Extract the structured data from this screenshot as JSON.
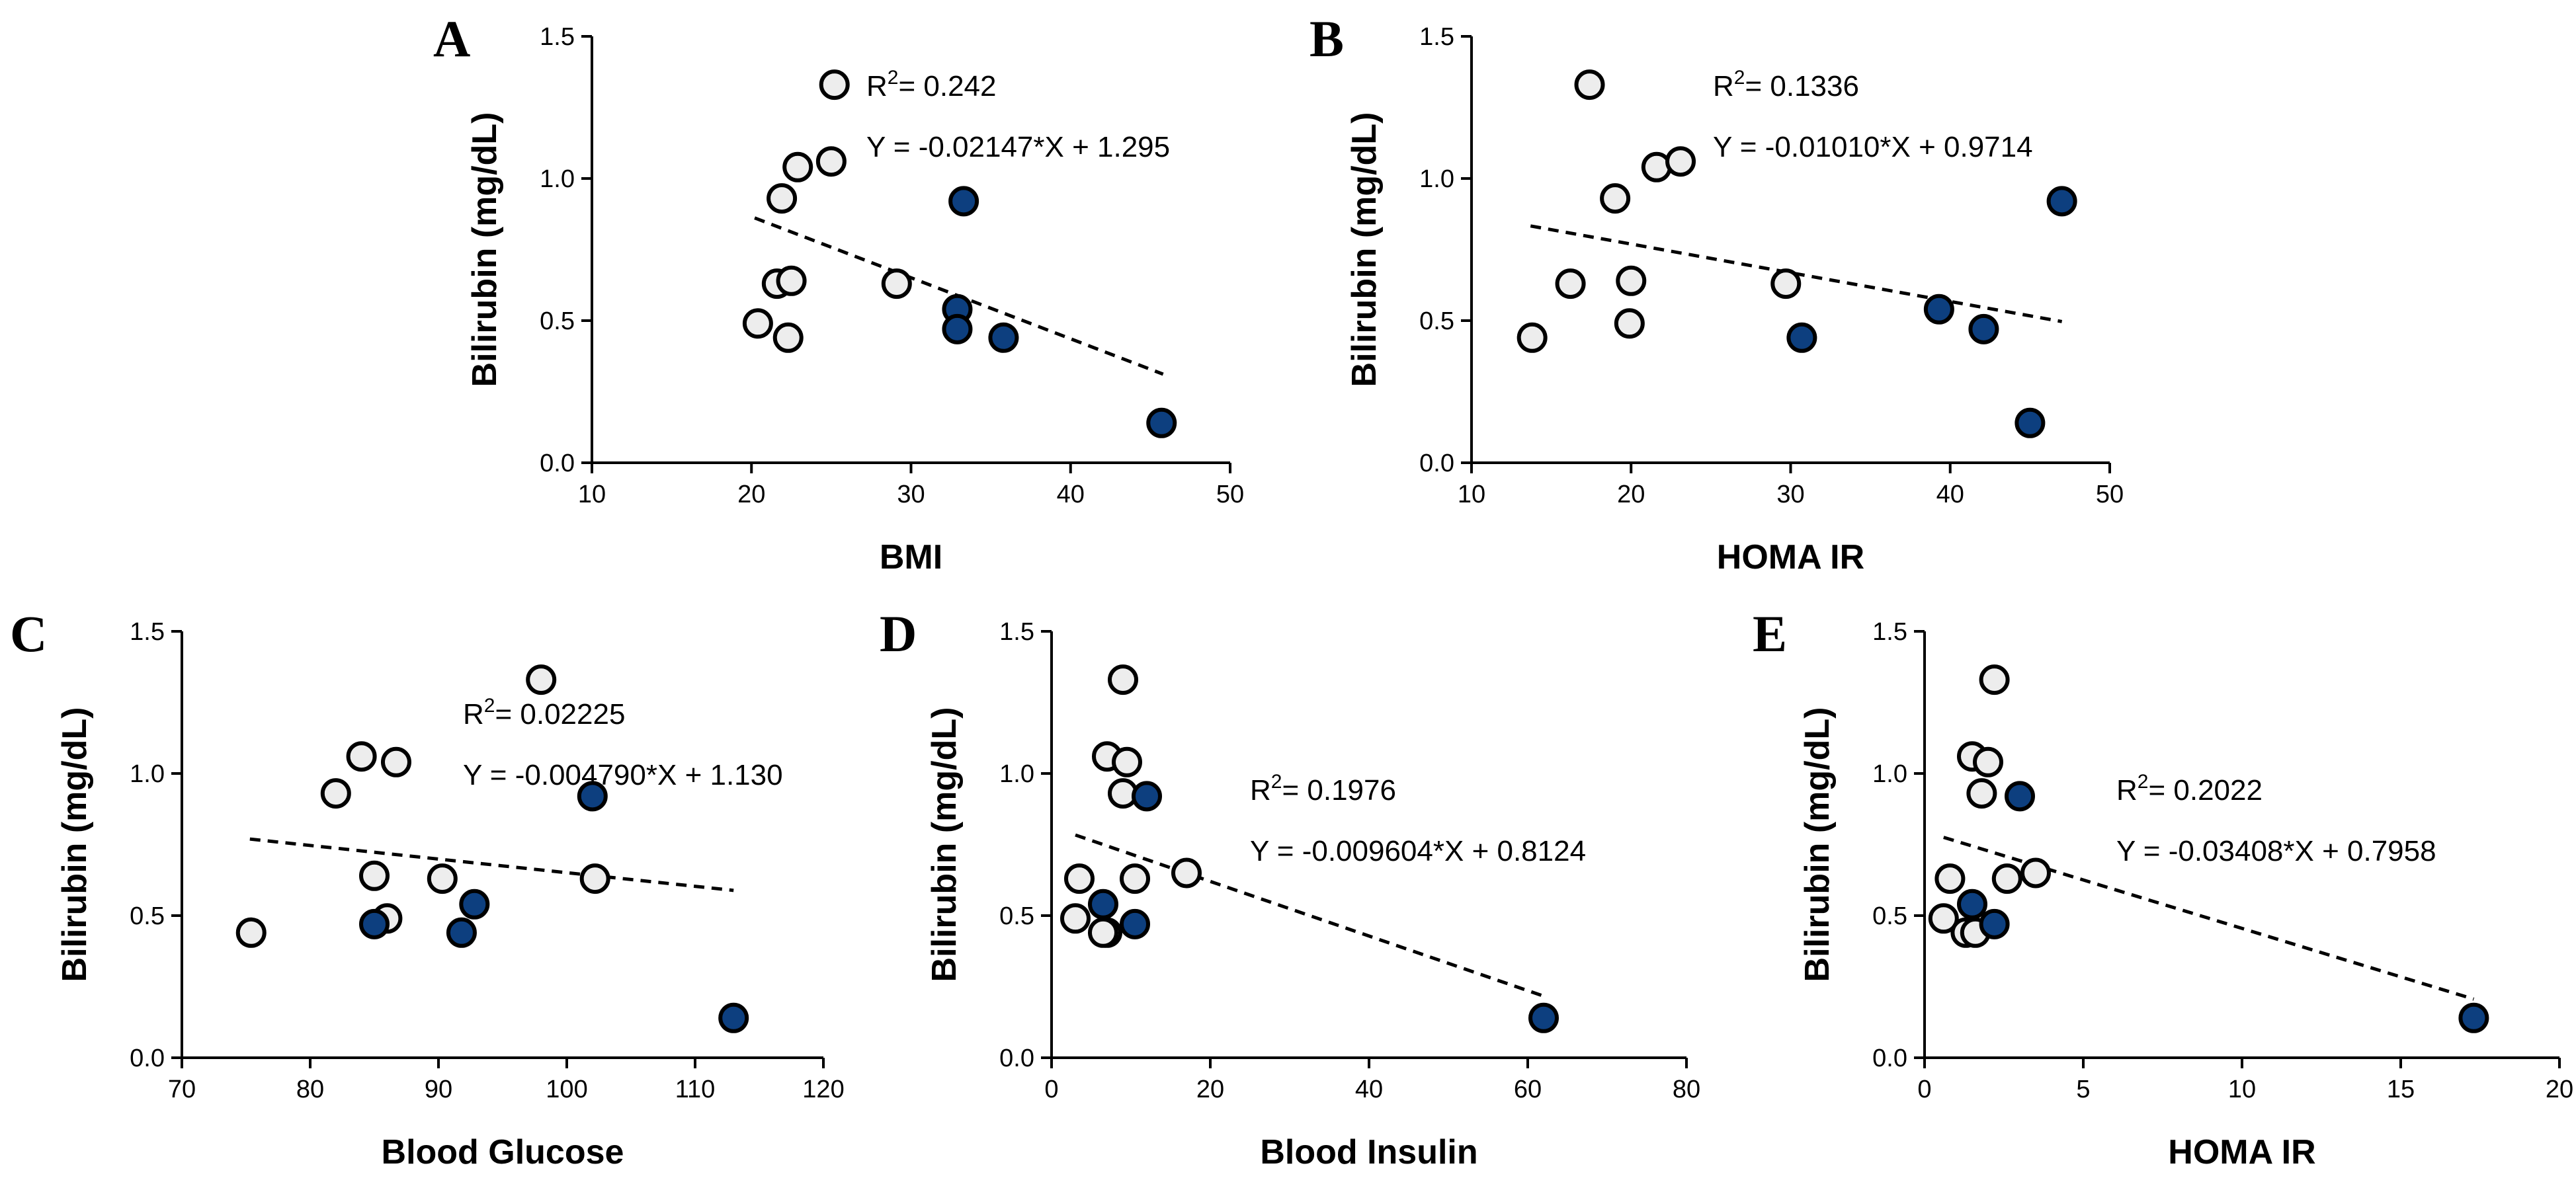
{
  "figure_colors": {
    "open_marker": "#ededed",
    "filled_marker": "#0d3f7f",
    "stroke": "#000000"
  },
  "chart_data": [
    {
      "panel": "A",
      "type": "scatter",
      "xlabel": "BMI",
      "ylabel": "Bilirubin (mg/dL)",
      "xlim": [
        10,
        50
      ],
      "ylim": [
        0,
        1.5
      ],
      "xticks": [
        10,
        20,
        30,
        40,
        50
      ],
      "yticks": [
        0.0,
        0.5,
        1.0,
        1.5
      ],
      "ytick_labels": [
        "0.0",
        "0.5",
        "1.0",
        "1.5"
      ],
      "r2_label": "R",
      "r2_sup": "2",
      "r2_value": "= 0.242",
      "equation": "Y = -0.02147*X + 1.295",
      "fit": {
        "slope": -0.02147,
        "intercept": 1.295,
        "x_range": [
          20.2,
          45.8
        ]
      },
      "series": [
        {
          "name": "open",
          "x": [
            25.2,
            21.9,
            22.9,
            25.0,
            21.6,
            22.5,
            20.4,
            22.3,
            29.1
          ],
          "y": [
            1.33,
            0.93,
            1.04,
            1.06,
            0.63,
            0.64,
            0.49,
            0.44,
            0.63
          ]
        },
        {
          "name": "filled",
          "x": [
            33.3,
            32.9,
            32.9,
            35.8,
            45.7
          ],
          "y": [
            0.92,
            0.54,
            0.47,
            0.44,
            0.14
          ]
        }
      ]
    },
    {
      "panel": "B",
      "type": "scatter",
      "xlabel": "HOMA IR",
      "ylabel": "Bilirubin (mg/dL)",
      "xlim": [
        10,
        50
      ],
      "ylim": [
        0,
        1.5
      ],
      "xticks": [
        10,
        20,
        30,
        40,
        50
      ],
      "yticks": [
        0.0,
        0.5,
        1.0,
        1.5
      ],
      "ytick_labels": [
        "0.0",
        "0.5",
        "1.0",
        "1.5"
      ],
      "r2_label": "R",
      "r2_sup": "2",
      "r2_value": "= 0.1336",
      "equation": "Y = -0.01010*X + 0.9714",
      "fit": {
        "slope": -0.0101,
        "intercept": 0.9714,
        "x_range": [
          13.7,
          47.0
        ]
      },
      "series": [
        {
          "name": "open",
          "x": [
            17.4,
            19.0,
            21.6,
            23.1,
            16.2,
            20.0,
            13.8,
            19.9,
            29.7
          ],
          "y": [
            1.33,
            0.93,
            1.04,
            1.06,
            0.63,
            0.64,
            0.44,
            0.49,
            0.63
          ]
        },
        {
          "name": "filled",
          "x": [
            47.0,
            39.3,
            42.1,
            30.7,
            45.0
          ],
          "y": [
            0.92,
            0.54,
            0.47,
            0.44,
            0.14
          ]
        }
      ]
    },
    {
      "panel": "C",
      "type": "scatter",
      "xlabel": "Blood Glucose",
      "ylabel": "Bilirubin (mg/dL)",
      "xlim": [
        70,
        120
      ],
      "ylim": [
        0,
        1.5
      ],
      "xticks": [
        70,
        80,
        90,
        100,
        110,
        120
      ],
      "yticks": [
        0.0,
        0.5,
        1.0,
        1.5
      ],
      "ytick_labels": [
        "0.0",
        "0.5",
        "1.0",
        "1.5"
      ],
      "r2_label": "R",
      "r2_sup": "2",
      "r2_value": "= 0.02225",
      "equation": "Y = -0.004790*X + 1.130",
      "fit": {
        "slope": -0.00479,
        "intercept": 1.13,
        "x_range": [
          75.3,
          113.0
        ]
      },
      "series": [
        {
          "name": "open",
          "x": [
            98.0,
            82.0,
            84.0,
            86.7,
            75.4,
            85.0,
            86.0,
            90.3,
            102.2
          ],
          "y": [
            1.33,
            0.93,
            1.06,
            1.04,
            0.44,
            0.64,
            0.49,
            0.63,
            0.63
          ]
        },
        {
          "name": "filled",
          "x": [
            102.0,
            85.0,
            92.8,
            91.8,
            113.0
          ],
          "y": [
            0.92,
            0.47,
            0.54,
            0.44,
            0.14
          ]
        }
      ]
    },
    {
      "panel": "D",
      "type": "scatter",
      "xlabel": "Blood Insulin",
      "ylabel": "Bilirubin (mg/dL)",
      "xlim": [
        0,
        80
      ],
      "ylim": [
        0,
        1.5
      ],
      "xticks": [
        0,
        20,
        40,
        60,
        80
      ],
      "yticks": [
        0.0,
        0.5,
        1.0,
        1.5
      ],
      "ytick_labels": [
        "0.0",
        "0.5",
        "1.0",
        "1.5"
      ],
      "r2_label": "R",
      "r2_sup": "2",
      "r2_value": "= 0.1976",
      "equation": "Y = -0.009604*X + 0.8124",
      "fit": {
        "slope": -0.009604,
        "intercept": 0.8124,
        "x_range": [
          3.0,
          62.0
        ]
      },
      "series": [
        {
          "name": "open",
          "x": [
            9.0,
            7.0,
            9.5,
            9.0,
            3.5,
            3.0,
            7.0,
            6.5,
            10.5,
            17.0
          ],
          "y": [
            1.33,
            1.06,
            1.04,
            0.93,
            0.63,
            0.49,
            0.44,
            0.44,
            0.63,
            0.65
          ]
        },
        {
          "name": "filled",
          "x": [
            12.0,
            6.5,
            10.5,
            62.0
          ],
          "y": [
            0.92,
            0.54,
            0.47,
            0.14
          ]
        }
      ]
    },
    {
      "panel": "E",
      "type": "scatter",
      "xlabel": "HOMA IR",
      "ylabel": "Bilirubin (mg/dL)",
      "xlim": [
        0,
        20
      ],
      "ylim": [
        0,
        1.5
      ],
      "xticks": [
        0,
        5,
        10,
        15,
        20
      ],
      "yticks": [
        0.0,
        0.5,
        1.0,
        1.5
      ],
      "ytick_labels": [
        "0.0",
        "0.5",
        "1.0",
        "1.5"
      ],
      "r2_label": "R",
      "r2_sup": "2",
      "r2_value": "= 0.2022",
      "equation": "Y = -0.03408*X + 0.7958",
      "fit": {
        "slope": -0.03408,
        "intercept": 0.7958,
        "x_range": [
          0.6,
          17.3
        ]
      },
      "series": [
        {
          "name": "open",
          "x": [
            2.2,
            1.5,
            2.0,
            1.8,
            0.8,
            0.6,
            1.3,
            1.6,
            2.6,
            3.5
          ],
          "y": [
            1.33,
            1.06,
            1.04,
            0.93,
            0.63,
            0.49,
            0.44,
            0.44,
            0.63,
            0.65
          ]
        },
        {
          "name": "filled",
          "x": [
            3.0,
            1.5,
            2.2,
            17.3
          ],
          "y": [
            0.92,
            0.54,
            0.47,
            0.14
          ]
        }
      ]
    }
  ]
}
